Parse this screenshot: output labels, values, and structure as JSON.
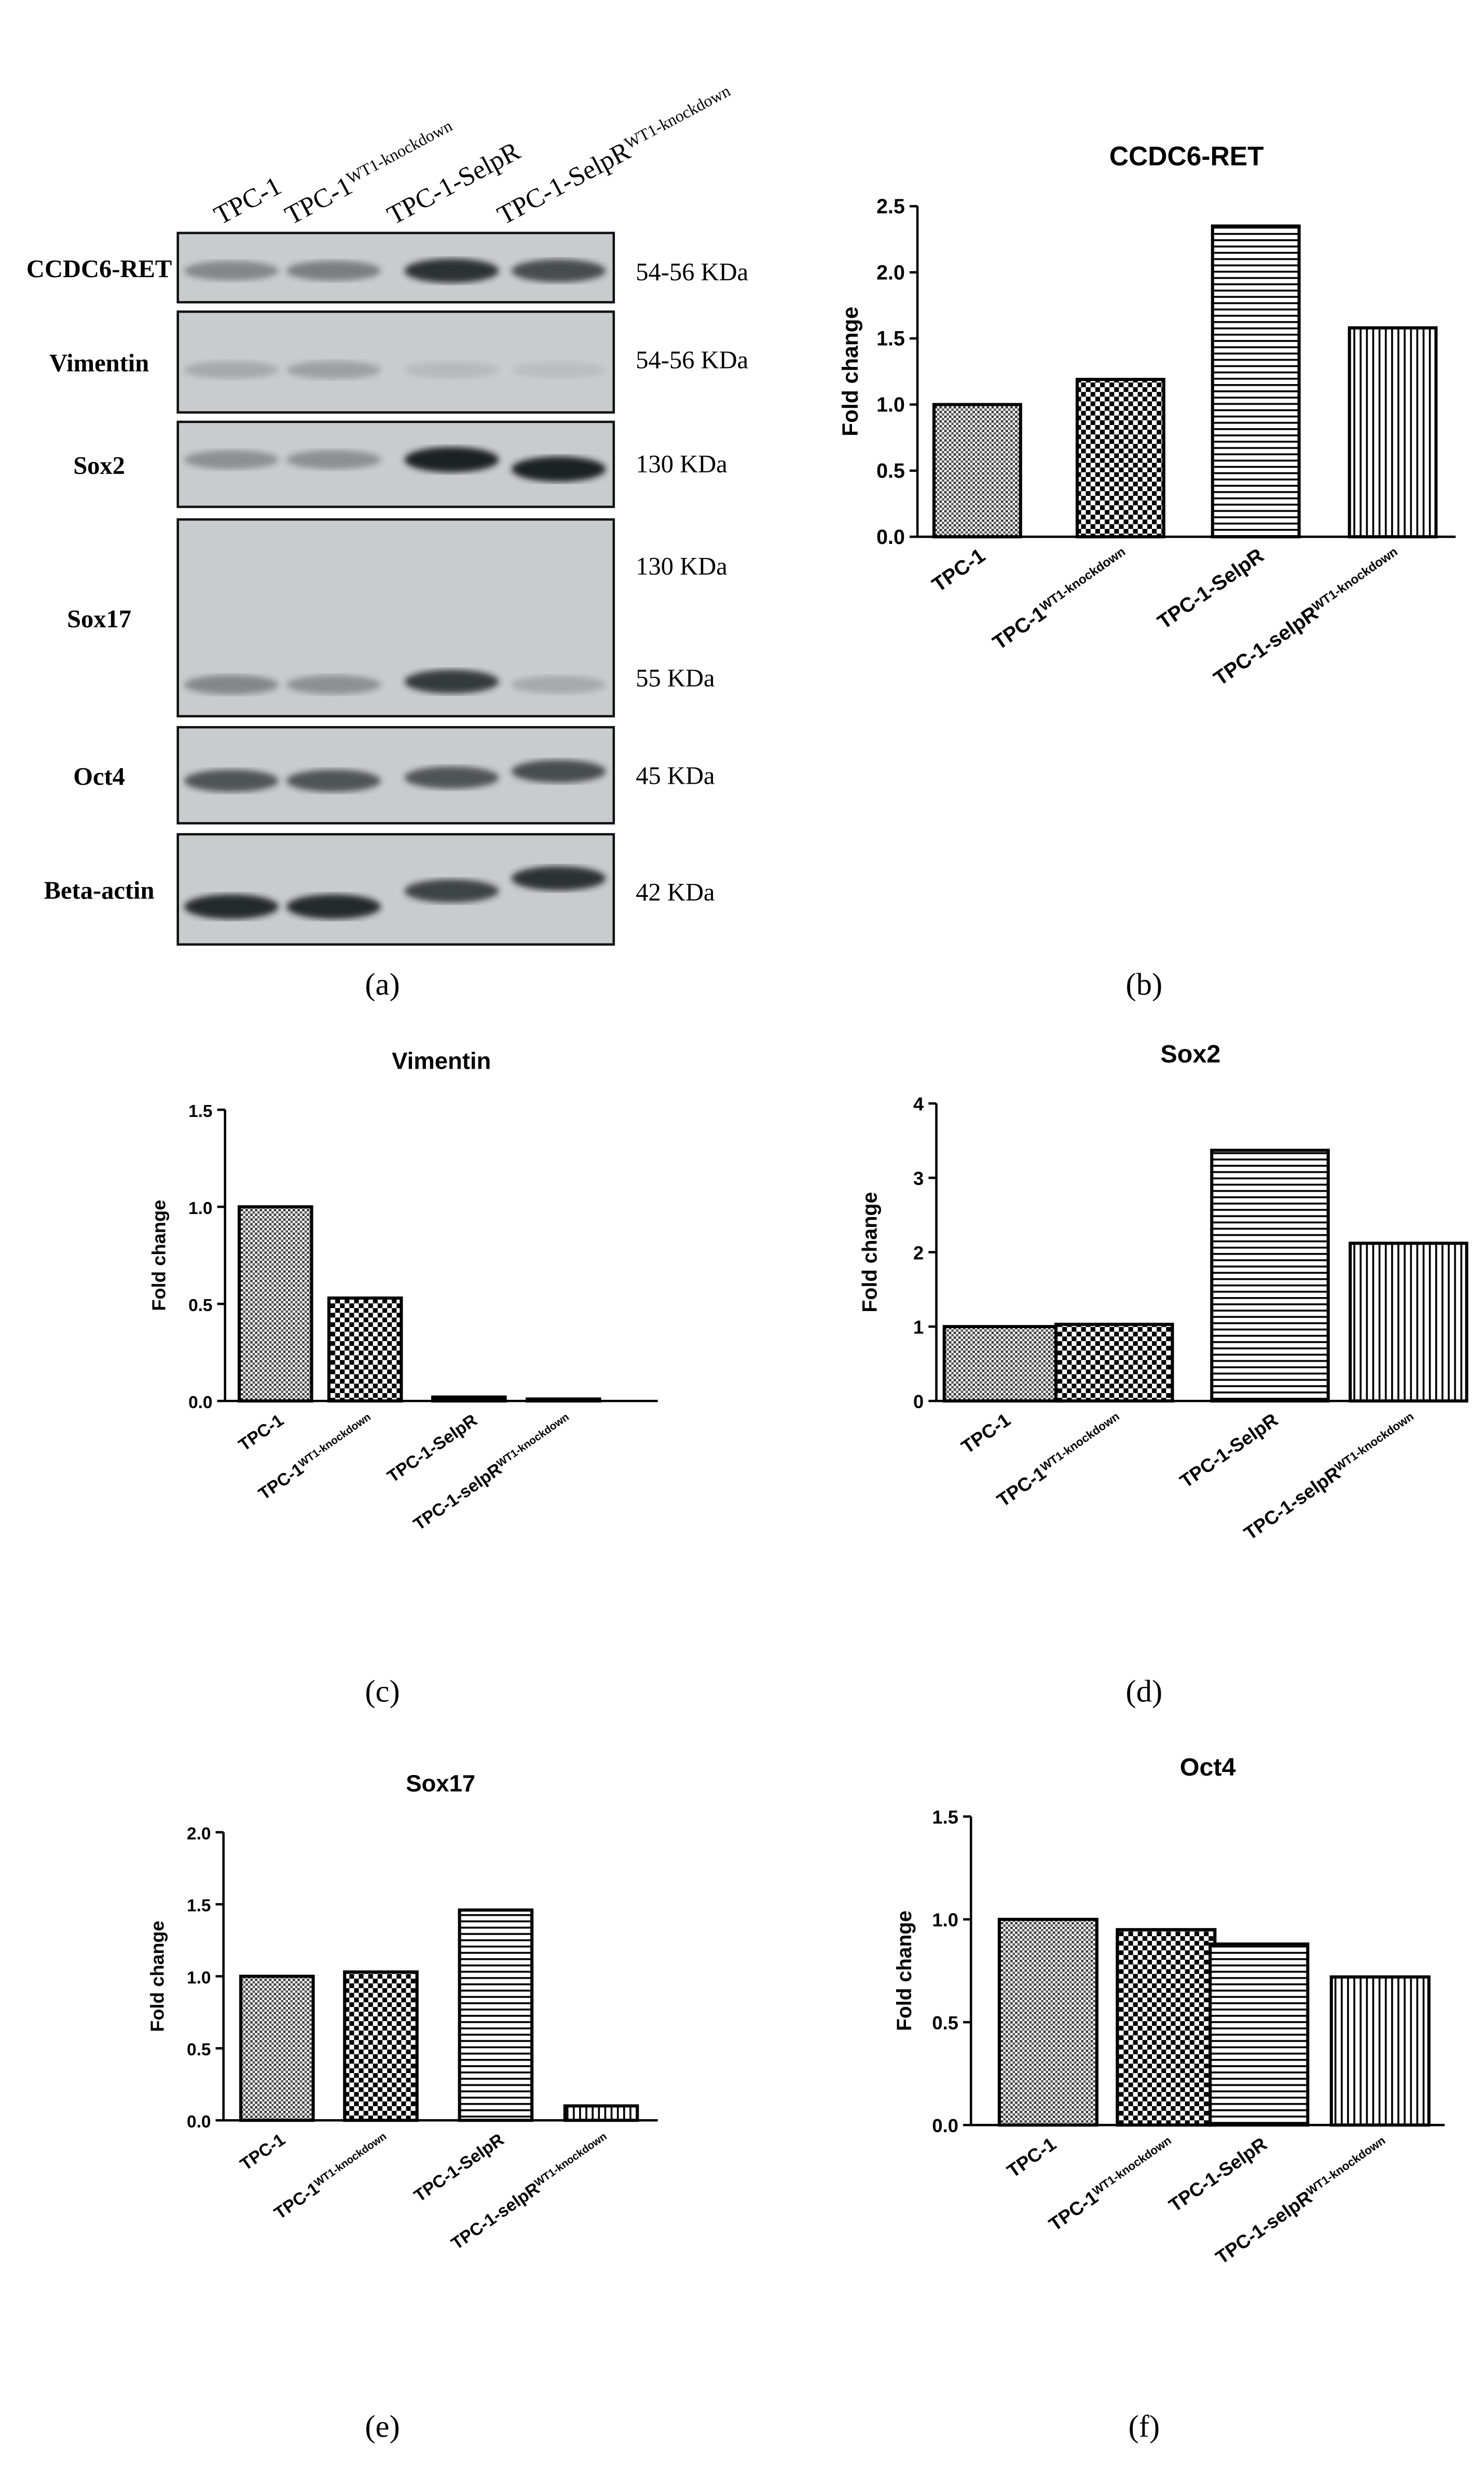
{
  "blot": {
    "lanes": [
      {
        "text": "TPC-1",
        "sup": null
      },
      {
        "text": "TPC-1",
        "sup": "WT1-knockdown"
      },
      {
        "text": "TPC-1-SelpR",
        "sup": null
      },
      {
        "text": "TPC-1-SelpR",
        "sup": "WT1-knockdown"
      }
    ],
    "rows": [
      {
        "name": "CCDC6-RET",
        "sizes": [
          "54-56 KDa"
        ]
      },
      {
        "name": "Vimentin",
        "sizes": [
          "54-56 KDa"
        ]
      },
      {
        "name": "Sox2",
        "sizes": [
          "130 KDa"
        ]
      },
      {
        "name": "Sox17",
        "sizes": [
          "130 KDa",
          "55 KDa"
        ]
      },
      {
        "name": "Oct4",
        "sizes": [
          "45 KDa"
        ]
      },
      {
        "name": "Beta-actin",
        "sizes": [
          "42 KDa"
        ]
      }
    ]
  },
  "panel_labels": [
    "(a)",
    "(b)",
    "(c)",
    "(d)",
    "(e)",
    "(f)"
  ],
  "chart_data": [
    {
      "type": "bar",
      "title": "CCDC6-RET",
      "y_label": "Fold change",
      "categories": [
        "TPC-1",
        "TPC-1",
        "TPC-1-SelpR",
        "TPC-1-selpR"
      ],
      "category_superscripts": [
        null,
        "WT1-knockdown",
        null,
        "WT1-knockdown"
      ],
      "values": [
        1.0,
        1.19,
        2.35,
        1.58
      ],
      "bar_patterns": [
        "dots",
        "checker",
        "hlines",
        "vlines"
      ],
      "ylim": [
        0,
        2.5
      ],
      "yticks": [
        {
          "value": 0,
          "label": "0.0"
        },
        0.5,
        {
          "value": 1,
          "label": "1.0"
        },
        1.5,
        {
          "value": 2,
          "label": "2.0"
        },
        2.5
      ]
    },
    {
      "type": "bar",
      "title": "Vimentin",
      "y_label": "Fold change",
      "categories": [
        "TPC-1",
        "TPC-1",
        "TPC-1-SelpR",
        "TPC-1-selpR"
      ],
      "category_superscripts": [
        null,
        "WT1-knockdown",
        null,
        "WT1-knockdown"
      ],
      "values": [
        1.0,
        0.53,
        0.02,
        0.01
      ],
      "bar_patterns": [
        "dots",
        "checker",
        "hlines",
        "vlines"
      ],
      "ylim": [
        0,
        1.5
      ],
      "yticks": [
        {
          "value": 0,
          "label": "0.0"
        },
        0.5,
        {
          "value": 1,
          "label": "1.0"
        },
        1.5
      ]
    },
    {
      "type": "bar",
      "title": "Sox2",
      "y_label": "Fold change",
      "categories": [
        "TPC-1",
        "TPC-1",
        "TPC-1-SelpR",
        "TPC-1-selpR"
      ],
      "category_superscripts": [
        null,
        "WT1-knockdown",
        null,
        "WT1-knockdown"
      ],
      "values": [
        1.0,
        1.03,
        3.37,
        2.12
      ],
      "bar_patterns": [
        "dots",
        "checker",
        "hlines",
        "vlines"
      ],
      "ylim": [
        0,
        4
      ],
      "yticks": [
        0,
        1,
        2,
        3,
        4
      ]
    },
    {
      "type": "bar",
      "title": "Sox17",
      "y_label": "Fold change",
      "categories": [
        "TPC-1",
        "TPC-1",
        "TPC-1-SelpR",
        "TPC-1-selpR"
      ],
      "category_superscripts": [
        null,
        "WT1-knockdown",
        null,
        "WT1-knockdown"
      ],
      "values": [
        1.0,
        1.03,
        1.46,
        0.1
      ],
      "bar_patterns": [
        "dots",
        "checker",
        "hlines",
        "vlines"
      ],
      "ylim": [
        0,
        2
      ],
      "yticks": [
        {
          "value": 0,
          "label": "0.0"
        },
        0.5,
        {
          "value": 1,
          "label": "1.0"
        },
        1.5,
        {
          "value": 2,
          "label": "2.0"
        }
      ]
    },
    {
      "type": "bar",
      "title": "Oct4",
      "y_label": "Fold change",
      "categories": [
        "TPC-1",
        "TPC-1",
        "TPC-1-SelpR",
        "TPC-1-selpR"
      ],
      "category_superscripts": [
        null,
        "WT1-knockdown",
        null,
        "WT1-knockdown"
      ],
      "values": [
        1.0,
        0.95,
        0.88,
        0.72
      ],
      "bar_patterns": [
        "dots",
        "checker",
        "hlines",
        "vlines"
      ],
      "ylim": [
        0,
        1.5
      ],
      "yticks": [
        {
          "value": 0,
          "label": "0.0"
        },
        0.5,
        {
          "value": 1,
          "label": "1.0"
        },
        1.5
      ]
    }
  ]
}
